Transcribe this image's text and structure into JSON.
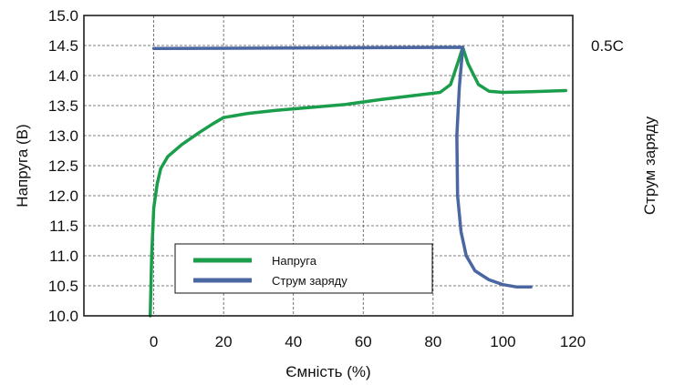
{
  "chart_data": {
    "type": "line",
    "xlabel": "Ємність (%)",
    "ylabel": "Напруга (B)",
    "y2label": "Струм заряду",
    "xlim": [
      -20,
      120
    ],
    "ylim": [
      10.0,
      15.0
    ],
    "x_ticks": [
      0,
      20,
      40,
      60,
      80,
      100,
      120
    ],
    "y_ticks": [
      10.0,
      10.5,
      11.0,
      11.5,
      12.0,
      12.5,
      13.0,
      13.5,
      14.0,
      14.5,
      15.0
    ],
    "y2_ticks": [
      {
        "label": "0.5C",
        "at": 14.5
      }
    ],
    "grid": true,
    "legend": {
      "position": "lower-center"
    },
    "series": [
      {
        "name": "Напруга",
        "color": "#1b9e4b",
        "points": [
          [
            -1,
            10.0
          ],
          [
            -0.6,
            11.0
          ],
          [
            0,
            11.8
          ],
          [
            1,
            12.2
          ],
          [
            2,
            12.45
          ],
          [
            4,
            12.65
          ],
          [
            8,
            12.85
          ],
          [
            13,
            13.05
          ],
          [
            17,
            13.2
          ],
          [
            20,
            13.3
          ],
          [
            27,
            13.37
          ],
          [
            35,
            13.42
          ],
          [
            45,
            13.47
          ],
          [
            55,
            13.52
          ],
          [
            65,
            13.6
          ],
          [
            75,
            13.67
          ],
          [
            82,
            13.72
          ],
          [
            85,
            13.85
          ],
          [
            87,
            14.2
          ],
          [
            88.5,
            14.47
          ],
          [
            90,
            14.2
          ],
          [
            93,
            13.85
          ],
          [
            96,
            13.74
          ],
          [
            100,
            13.72
          ],
          [
            108,
            13.73
          ],
          [
            118,
            13.75
          ]
        ]
      },
      {
        "name": "Струм заряду",
        "color": "#4a67a1",
        "points": [
          [
            0,
            14.45
          ],
          [
            88.5,
            14.47
          ],
          [
            87.5,
            13.8
          ],
          [
            86.8,
            13.0
          ],
          [
            87,
            12.0
          ],
          [
            88,
            11.4
          ],
          [
            89.5,
            11.0
          ],
          [
            92,
            10.75
          ],
          [
            96,
            10.6
          ],
          [
            100,
            10.52
          ],
          [
            104,
            10.48
          ],
          [
            108,
            10.48
          ]
        ]
      }
    ]
  }
}
